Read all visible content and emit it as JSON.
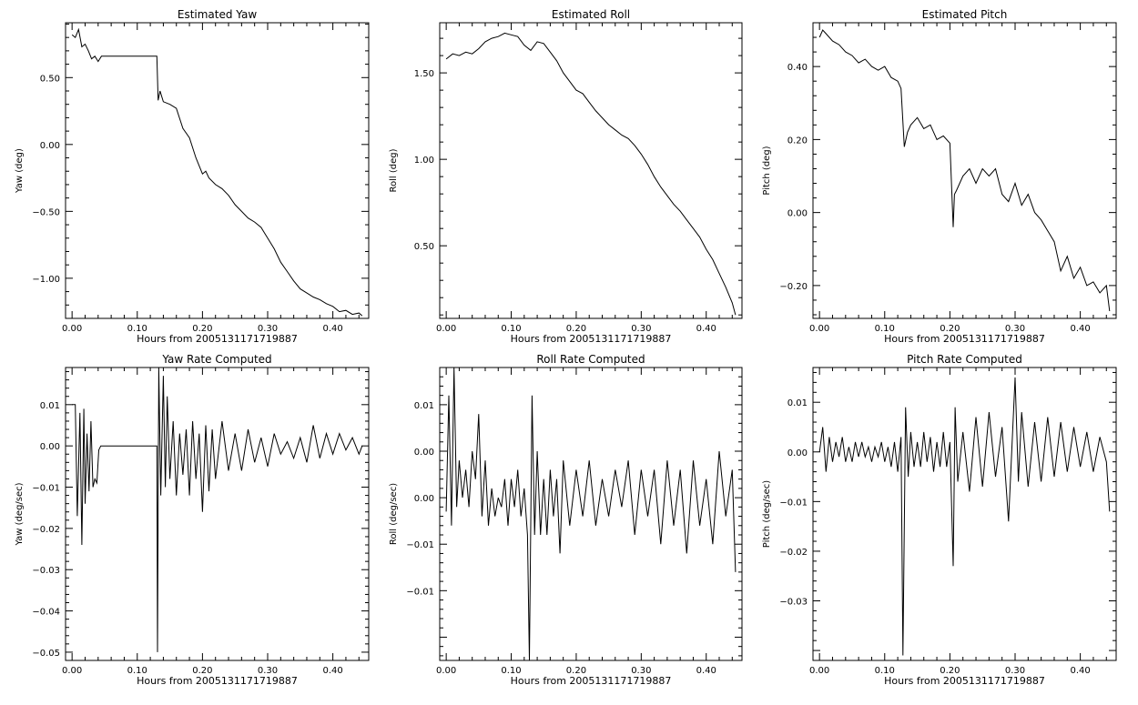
{
  "figure": {
    "background": "#ffffff",
    "line_color": "#000000"
  },
  "chart_data": [
    {
      "type": "line",
      "title": "Estimated Yaw",
      "xlabel": "Hours from 2005131171719887",
      "ylabel": "Yaw (deg)",
      "xlim": [
        -0.01,
        0.455
      ],
      "ylim": [
        -1.3,
        0.91
      ],
      "xticks": [
        0.0,
        0.1,
        0.2,
        0.3,
        0.4
      ],
      "xtick_labels": [
        "0.00",
        "0.10",
        "0.20",
        "0.30",
        "0.40"
      ],
      "yticks": [
        -1.0,
        -0.5,
        0.0,
        0.5
      ],
      "ytick_labels": [
        "−1.00",
        "−0.50",
        "0.00",
        "0.50"
      ],
      "grid": false,
      "x": [
        0.0,
        0.005,
        0.01,
        0.015,
        0.02,
        0.025,
        0.03,
        0.035,
        0.04,
        0.045,
        0.13,
        0.132,
        0.135,
        0.14,
        0.15,
        0.16,
        0.17,
        0.18,
        0.19,
        0.2,
        0.205,
        0.21,
        0.22,
        0.23,
        0.24,
        0.25,
        0.26,
        0.27,
        0.28,
        0.29,
        0.3,
        0.31,
        0.32,
        0.33,
        0.34,
        0.35,
        0.36,
        0.37,
        0.38,
        0.39,
        0.4,
        0.41,
        0.42,
        0.43,
        0.44,
        0.445
      ],
      "y": [
        0.82,
        0.8,
        0.86,
        0.73,
        0.75,
        0.7,
        0.64,
        0.66,
        0.62,
        0.66,
        0.66,
        0.33,
        0.4,
        0.32,
        0.3,
        0.27,
        0.12,
        0.05,
        -0.1,
        -0.22,
        -0.2,
        -0.25,
        -0.3,
        -0.33,
        -0.38,
        -0.45,
        -0.5,
        -0.55,
        -0.58,
        -0.62,
        -0.7,
        -0.78,
        -0.88,
        -0.95,
        -1.02,
        -1.08,
        -1.11,
        -1.14,
        -1.16,
        -1.19,
        -1.21,
        -1.25,
        -1.24,
        -1.27,
        -1.26,
        -1.28
      ]
    },
    {
      "type": "line",
      "title": "Estimated Roll",
      "xlabel": "Hours from 2005131171719887",
      "ylabel": "Roll (deg)",
      "xlim": [
        -0.01,
        0.455
      ],
      "ylim": [
        0.08,
        1.79
      ],
      "xticks": [
        0.0,
        0.1,
        0.2,
        0.3,
        0.4
      ],
      "xtick_labels": [
        "0.00",
        "0.10",
        "0.20",
        "0.30",
        "0.40"
      ],
      "yticks": [
        0.5,
        1.0,
        1.5
      ],
      "ytick_labels": [
        "0.50",
        "1.00",
        "1.50"
      ],
      "grid": false,
      "x": [
        0.0,
        0.01,
        0.02,
        0.03,
        0.04,
        0.05,
        0.06,
        0.07,
        0.08,
        0.09,
        0.1,
        0.11,
        0.12,
        0.13,
        0.14,
        0.15,
        0.16,
        0.17,
        0.18,
        0.19,
        0.2,
        0.21,
        0.22,
        0.23,
        0.24,
        0.25,
        0.26,
        0.27,
        0.28,
        0.29,
        0.3,
        0.31,
        0.32,
        0.33,
        0.34,
        0.35,
        0.36,
        0.37,
        0.38,
        0.39,
        0.4,
        0.41,
        0.42,
        0.43,
        0.44,
        0.445
      ],
      "y": [
        1.58,
        1.61,
        1.6,
        1.62,
        1.61,
        1.64,
        1.68,
        1.7,
        1.71,
        1.73,
        1.72,
        1.71,
        1.66,
        1.63,
        1.68,
        1.67,
        1.62,
        1.57,
        1.5,
        1.45,
        1.4,
        1.38,
        1.33,
        1.28,
        1.24,
        1.2,
        1.17,
        1.14,
        1.12,
        1.08,
        1.03,
        0.97,
        0.9,
        0.84,
        0.79,
        0.74,
        0.7,
        0.65,
        0.6,
        0.55,
        0.48,
        0.42,
        0.34,
        0.26,
        0.17,
        0.1
      ]
    },
    {
      "type": "line",
      "title": "Estimated Pitch",
      "xlabel": "Hours from 2005131171719887",
      "ylabel": "Pitch (deg)",
      "xlim": [
        -0.01,
        0.455
      ],
      "ylim": [
        -0.29,
        0.52
      ],
      "xticks": [
        0.0,
        0.1,
        0.2,
        0.3,
        0.4
      ],
      "xtick_labels": [
        "0.00",
        "0.10",
        "0.20",
        "0.30",
        "0.40"
      ],
      "yticks": [
        -0.2,
        0.0,
        0.2,
        0.4
      ],
      "ytick_labels": [
        "−0.20",
        "0.00",
        "0.20",
        "0.40"
      ],
      "grid": false,
      "x": [
        0.0,
        0.005,
        0.01,
        0.02,
        0.03,
        0.04,
        0.05,
        0.06,
        0.07,
        0.08,
        0.09,
        0.1,
        0.11,
        0.12,
        0.125,
        0.13,
        0.135,
        0.14,
        0.15,
        0.16,
        0.17,
        0.18,
        0.19,
        0.2,
        0.205,
        0.207,
        0.21,
        0.22,
        0.23,
        0.24,
        0.25,
        0.26,
        0.27,
        0.28,
        0.29,
        0.3,
        0.31,
        0.32,
        0.33,
        0.34,
        0.35,
        0.36,
        0.37,
        0.38,
        0.39,
        0.4,
        0.41,
        0.42,
        0.43,
        0.44,
        0.445
      ],
      "y": [
        0.48,
        0.5,
        0.49,
        0.47,
        0.46,
        0.44,
        0.43,
        0.41,
        0.42,
        0.4,
        0.39,
        0.4,
        0.37,
        0.36,
        0.34,
        0.18,
        0.22,
        0.24,
        0.26,
        0.23,
        0.24,
        0.2,
        0.21,
        0.19,
        -0.04,
        0.05,
        0.06,
        0.1,
        0.12,
        0.08,
        0.12,
        0.1,
        0.12,
        0.05,
        0.03,
        0.08,
        0.02,
        0.05,
        0.0,
        -0.02,
        -0.05,
        -0.08,
        -0.16,
        -0.12,
        -0.18,
        -0.15,
        -0.2,
        -0.19,
        -0.22,
        -0.2,
        -0.27
      ]
    },
    {
      "type": "line",
      "title": "Yaw Rate Computed",
      "xlabel": "Hours from 2005131171719887",
      "ylabel": "Yaw (deg/sec)",
      "xlim": [
        -0.01,
        0.455
      ],
      "ylim": [
        -0.052,
        0.019
      ],
      "xticks": [
        0.0,
        0.1,
        0.2,
        0.3,
        0.4
      ],
      "xtick_labels": [
        "0.00",
        "0.10",
        "0.20",
        "0.30",
        "0.40"
      ],
      "yticks": [
        -0.05,
        -0.04,
        -0.03,
        -0.02,
        -0.01,
        0.0,
        0.01
      ],
      "ytick_labels": [
        "−0.05",
        "−0.04",
        "−0.03",
        "−0.02",
        "−0.01",
        "0.00",
        "0.01"
      ],
      "grid": false,
      "x": [
        0.0,
        0.005,
        0.008,
        0.012,
        0.015,
        0.018,
        0.02,
        0.023,
        0.026,
        0.029,
        0.032,
        0.035,
        0.038,
        0.041,
        0.044,
        0.13,
        0.131,
        0.133,
        0.136,
        0.14,
        0.143,
        0.146,
        0.15,
        0.155,
        0.16,
        0.165,
        0.17,
        0.175,
        0.18,
        0.185,
        0.19,
        0.195,
        0.2,
        0.205,
        0.21,
        0.215,
        0.22,
        0.23,
        0.24,
        0.25,
        0.26,
        0.27,
        0.28,
        0.29,
        0.3,
        0.31,
        0.32,
        0.33,
        0.34,
        0.35,
        0.36,
        0.37,
        0.38,
        0.39,
        0.4,
        0.41,
        0.42,
        0.43,
        0.44,
        0.445
      ],
      "y": [
        0.01,
        0.01,
        -0.017,
        0.008,
        -0.024,
        0.009,
        -0.014,
        0.003,
        -0.011,
        0.006,
        -0.01,
        -0.008,
        -0.009,
        -0.001,
        0.0,
        0.0,
        -0.05,
        0.019,
        -0.012,
        0.017,
        -0.01,
        0.012,
        -0.008,
        0.006,
        -0.012,
        0.003,
        -0.007,
        0.004,
        -0.012,
        0.006,
        -0.008,
        0.003,
        -0.016,
        0.005,
        -0.011,
        0.004,
        -0.008,
        0.006,
        -0.006,
        0.003,
        -0.006,
        0.004,
        -0.004,
        0.002,
        -0.005,
        0.003,
        -0.002,
        0.001,
        -0.003,
        0.002,
        -0.004,
        0.005,
        -0.003,
        0.003,
        -0.002,
        0.003,
        -0.001,
        0.002,
        -0.002,
        0.0
      ]
    },
    {
      "type": "line",
      "title": "Roll Rate Computed",
      "xlabel": "Hours from 2005131171719887",
      "ylabel": "Roll (deg/sec)",
      "xlim": [
        -0.01,
        0.455
      ],
      "ylim": [
        -0.0175,
        0.014
      ],
      "xticks": [
        0.0,
        0.1,
        0.2,
        0.3,
        0.4
      ],
      "xtick_labels": [
        "0.00",
        "0.10",
        "0.20",
        "0.30",
        "0.40"
      ],
      "yticks": [
        -0.01,
        -0.005,
        0.0,
        0.005,
        0.01
      ],
      "ytick_labels": [
        "−0.01",
        "−0.01",
        "0.00",
        "0.00",
        "0.01"
      ],
      "grid": false,
      "x": [
        0.0,
        0.004,
        0.008,
        0.012,
        0.016,
        0.02,
        0.025,
        0.03,
        0.035,
        0.04,
        0.045,
        0.05,
        0.055,
        0.06,
        0.065,
        0.07,
        0.075,
        0.08,
        0.085,
        0.09,
        0.095,
        0.1,
        0.105,
        0.11,
        0.115,
        0.12,
        0.125,
        0.128,
        0.132,
        0.136,
        0.14,
        0.145,
        0.15,
        0.155,
        0.16,
        0.165,
        0.17,
        0.175,
        0.18,
        0.19,
        0.2,
        0.21,
        0.22,
        0.23,
        0.24,
        0.25,
        0.26,
        0.27,
        0.28,
        0.29,
        0.3,
        0.31,
        0.32,
        0.33,
        0.34,
        0.35,
        0.36,
        0.37,
        0.38,
        0.39,
        0.4,
        0.41,
        0.42,
        0.43,
        0.44,
        0.445
      ],
      "y": [
        -0.0015,
        0.011,
        -0.003,
        0.014,
        -0.001,
        0.004,
        0.0,
        0.003,
        -0.001,
        0.005,
        0.002,
        0.009,
        -0.002,
        0.004,
        -0.003,
        0.001,
        -0.002,
        0.0,
        -0.001,
        0.002,
        -0.003,
        0.002,
        -0.001,
        0.003,
        -0.002,
        0.001,
        -0.004,
        -0.0175,
        0.011,
        -0.004,
        0.005,
        -0.004,
        0.002,
        -0.004,
        0.003,
        -0.002,
        0.002,
        -0.006,
        0.004,
        -0.003,
        0.003,
        -0.002,
        0.004,
        -0.003,
        0.002,
        -0.002,
        0.003,
        -0.001,
        0.004,
        -0.004,
        0.003,
        -0.002,
        0.003,
        -0.005,
        0.004,
        -0.003,
        0.003,
        -0.006,
        0.004,
        -0.003,
        0.002,
        -0.005,
        0.005,
        -0.002,
        0.003,
        -0.008
      ]
    },
    {
      "type": "line",
      "title": "Pitch Rate Computed",
      "xlabel": "Hours from 2005131171719887",
      "ylabel": "Pitch (deg/sec)",
      "xlim": [
        -0.01,
        0.455
      ],
      "ylim": [
        -0.042,
        0.017
      ],
      "xticks": [
        0.0,
        0.1,
        0.2,
        0.3,
        0.4
      ],
      "xtick_labels": [
        "0.00",
        "0.10",
        "0.20",
        "0.30",
        "0.40"
      ],
      "yticks": [
        -0.03,
        -0.02,
        -0.01,
        0.0,
        0.01
      ],
      "ytick_labels": [
        "−0.03",
        "−0.02",
        "−0.01",
        "0.00",
        "0.01"
      ],
      "grid": false,
      "x": [
        0.0,
        0.005,
        0.01,
        0.015,
        0.02,
        0.025,
        0.03,
        0.035,
        0.04,
        0.045,
        0.05,
        0.055,
        0.06,
        0.065,
        0.07,
        0.075,
        0.08,
        0.085,
        0.09,
        0.095,
        0.1,
        0.105,
        0.11,
        0.115,
        0.12,
        0.125,
        0.128,
        0.132,
        0.136,
        0.14,
        0.145,
        0.15,
        0.155,
        0.16,
        0.165,
        0.17,
        0.175,
        0.18,
        0.185,
        0.19,
        0.195,
        0.2,
        0.205,
        0.208,
        0.212,
        0.22,
        0.23,
        0.24,
        0.25,
        0.26,
        0.27,
        0.28,
        0.29,
        0.3,
        0.305,
        0.31,
        0.32,
        0.33,
        0.34,
        0.35,
        0.36,
        0.37,
        0.38,
        0.39,
        0.4,
        0.41,
        0.42,
        0.43,
        0.44,
        0.445
      ],
      "y": [
        0.0,
        0.005,
        -0.004,
        0.003,
        -0.002,
        0.002,
        -0.001,
        0.003,
        -0.002,
        0.001,
        -0.002,
        0.002,
        -0.001,
        0.002,
        -0.001,
        0.001,
        -0.002,
        0.001,
        -0.001,
        0.002,
        -0.002,
        0.001,
        -0.003,
        0.002,
        -0.004,
        0.003,
        -0.041,
        0.009,
        -0.005,
        0.004,
        -0.003,
        0.002,
        -0.003,
        0.004,
        -0.002,
        0.003,
        -0.004,
        0.002,
        -0.003,
        0.004,
        -0.003,
        0.002,
        -0.023,
        0.009,
        -0.006,
        0.004,
        -0.008,
        0.007,
        -0.007,
        0.008,
        -0.005,
        0.005,
        -0.014,
        0.015,
        -0.006,
        0.008,
        -0.007,
        0.006,
        -0.006,
        0.007,
        -0.005,
        0.006,
        -0.004,
        0.005,
        -0.003,
        0.004,
        -0.004,
        0.003,
        -0.002,
        -0.012
      ]
    }
  ]
}
